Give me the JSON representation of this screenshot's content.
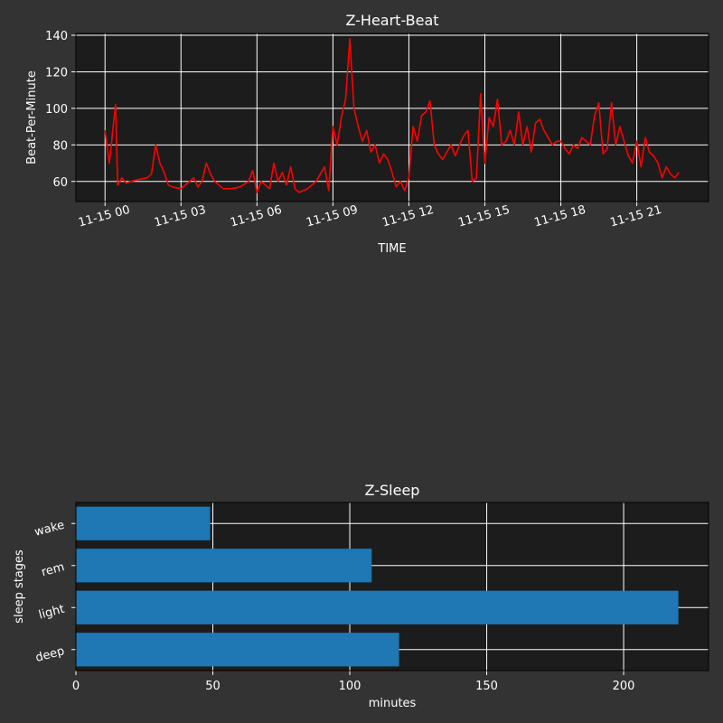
{
  "chart_data": [
    {
      "type": "line",
      "title": "Z-Heart-Beat",
      "xlabel": "TIME",
      "ylabel": "Beat-Per-Minute",
      "x_tick_labels": [
        "11-15 00",
        "11-15 03",
        "11-15 06",
        "11-15 09",
        "11-15 12",
        "11-15 15",
        "11-15 18",
        "11-15 21"
      ],
      "y_tick_labels": [
        "60",
        "80",
        "100",
        "120",
        "140"
      ],
      "xlim": [
        "11-14 22:51",
        "11-15 23:50"
      ],
      "ylim": [
        49,
        141
      ],
      "grid": true,
      "colors": {
        "line": "#ff0000",
        "plot_bg": "#1c1c1c",
        "figure_bg": "#333333",
        "grid": "#ffffff"
      },
      "series": [
        {
          "x": [
            "11-15 00:00",
            "11-15 00:10",
            "11-15 00:15",
            "11-15 00:20",
            "11-15 00:25",
            "11-15 00:30",
            "11-15 00:35",
            "11-15 00:40",
            "11-15 00:50",
            "11-15 01:00",
            "11-15 01:20",
            "11-15 01:40",
            "11-15 01:50",
            "11-15 02:00",
            "11-15 02:10",
            "11-15 02:20",
            "11-15 02:30",
            "11-15 02:40",
            "11-15 03:00",
            "11-15 03:10",
            "11-15 03:20",
            "11-15 03:30",
            "11-15 03:40",
            "11-15 03:50",
            "11-15 04:00",
            "11-15 04:10",
            "11-15 04:20",
            "11-15 04:30",
            "11-15 04:40",
            "11-15 05:00",
            "11-15 05:20",
            "11-15 05:40",
            "11-15 05:50",
            "11-15 06:00",
            "11-15 06:10",
            "11-15 06:20",
            "11-15 06:30",
            "11-15 06:40",
            "11-15 06:50",
            "11-15 07:00",
            "11-15 07:10",
            "11-15 07:20",
            "11-15 07:30",
            "11-15 07:40",
            "11-15 08:00",
            "11-15 08:20",
            "11-15 08:40",
            "11-15 08:50",
            "11-15 09:00",
            "11-15 09:10",
            "11-15 09:20",
            "11-15 09:30",
            "11-15 09:40",
            "11-15 09:50",
            "11-15 10:00",
            "11-15 10:10",
            "11-15 10:20",
            "11-15 10:30",
            "11-15 10:40",
            "11-15 10:50",
            "11-15 11:00",
            "11-15 11:10",
            "11-15 11:20",
            "11-15 11:30",
            "11-15 11:40",
            "11-15 11:50",
            "11-15 12:00",
            "11-15 12:10",
            "11-15 12:20",
            "11-15 12:30",
            "11-15 12:40",
            "11-15 12:50",
            "11-15 13:00",
            "11-15 13:10",
            "11-15 13:20",
            "11-15 13:30",
            "11-15 13:40",
            "11-15 13:50",
            "11-15 14:00",
            "11-15 14:10",
            "11-15 14:20",
            "11-15 14:30",
            "11-15 14:40",
            "11-15 14:50",
            "11-15 15:00",
            "11-15 15:10",
            "11-15 15:20",
            "11-15 15:30",
            "11-15 15:40",
            "11-15 15:50",
            "11-15 16:00",
            "11-15 16:10",
            "11-15 16:20",
            "11-15 16:30",
            "11-15 16:40",
            "11-15 16:50",
            "11-15 17:00",
            "11-15 17:10",
            "11-15 17:20",
            "11-15 17:30",
            "11-15 17:40",
            "11-15 17:50",
            "11-15 18:00",
            "11-15 18:10",
            "11-15 18:20",
            "11-15 18:30",
            "11-15 18:40",
            "11-15 18:50",
            "11-15 19:00",
            "11-15 19:10",
            "11-15 19:20",
            "11-15 19:30",
            "11-15 19:40",
            "11-15 19:50",
            "11-15 20:00",
            "11-15 20:10",
            "11-15 20:20",
            "11-15 20:30",
            "11-15 20:40",
            "11-15 20:50",
            "11-15 21:00",
            "11-15 21:10",
            "11-15 21:20",
            "11-15 21:30",
            "11-15 21:40",
            "11-15 21:50",
            "11-15 22:00",
            "11-15 22:10",
            "11-15 22:20",
            "11-15 22:30",
            "11-15 22:40"
          ],
          "y": [
            88,
            70,
            80,
            92,
            102,
            58,
            60,
            62,
            59,
            60,
            61,
            62,
            64,
            80,
            70,
            65,
            58,
            57,
            56,
            58,
            60,
            62,
            57,
            60,
            70,
            64,
            60,
            58,
            56,
            56,
            57,
            60,
            66,
            54,
            60,
            58,
            56,
            70,
            60,
            65,
            58,
            68,
            56,
            54,
            56,
            60,
            68,
            55,
            90,
            80,
            95,
            105,
            138,
            100,
            90,
            82,
            88,
            76,
            80,
            70,
            75,
            72,
            65,
            57,
            60,
            55,
            62,
            90,
            82,
            96,
            98,
            104,
            80,
            75,
            72,
            76,
            80,
            74,
            80,
            85,
            88,
            60,
            62,
            108,
            70,
            95,
            90,
            105,
            80,
            82,
            88,
            80,
            98,
            80,
            90,
            76,
            92,
            94,
            88,
            84,
            80,
            82,
            82,
            78,
            75,
            80,
            78,
            84,
            82,
            80,
            96,
            103,
            75,
            78,
            103,
            80,
            90,
            82,
            74,
            70,
            82,
            68,
            84,
            76,
            74,
            70,
            62,
            68,
            64,
            62,
            65
          ]
        }
      ]
    },
    {
      "type": "bar",
      "orientation": "horizontal",
      "title": "Z-Sleep",
      "xlabel": "minutes",
      "ylabel": "sleep stages",
      "categories": [
        "deep",
        "light",
        "rem",
        "wake"
      ],
      "values": [
        118,
        220,
        108,
        49
      ],
      "x_tick_labels": [
        "0",
        "50",
        "100",
        "150",
        "200"
      ],
      "xlim": [
        0,
        231
      ],
      "grid": true,
      "colors": {
        "bar": "#1f77b4",
        "plot_bg": "#1c1c1c",
        "grid": "#ffffff"
      }
    }
  ]
}
